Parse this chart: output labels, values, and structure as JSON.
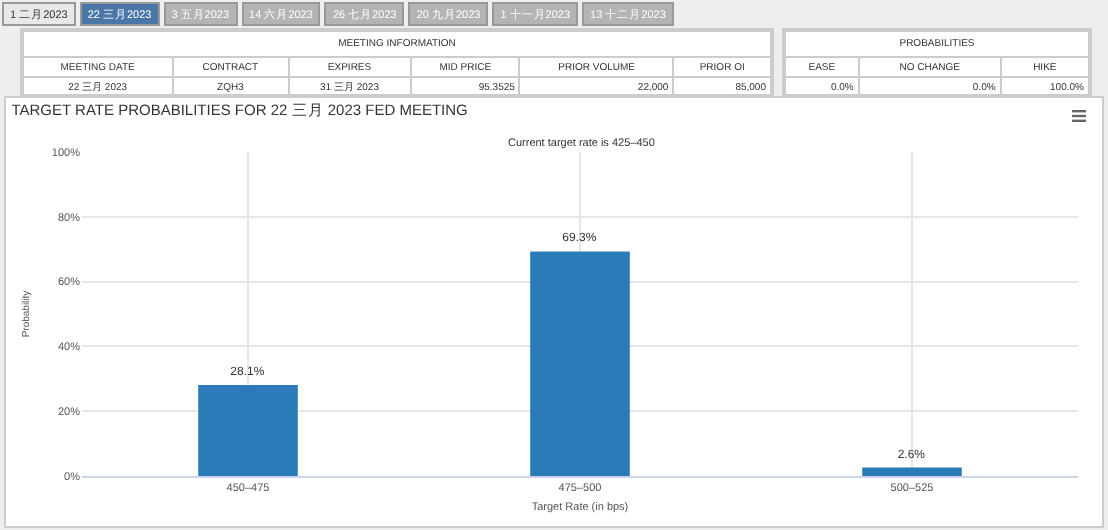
{
  "chart_data": [
    {
      "type": "other",
      "categories": [
        "1 二月2023",
        "22 三月2023",
        "3 五月2023",
        "14 六月2023",
        "26 七月2023",
        "20 九月2023",
        "1 十一月2023",
        "13 十二月2023"
      ],
      "colors": [
        "#e8e8e8",
        "#4a76a8",
        "#b4b4b4",
        "#b4b4b4",
        "#b4b4b4",
        "#b4b4b4",
        "#b4b4b4",
        "#b4b4b4"
      ]
    },
    {
      "type": "other",
      "title": "MEETING INFORMATION",
      "categories": [
        "MEETING DATE",
        "CONTRACT",
        "EXPIRES",
        "MID PRICE",
        "PRIOR VOLUME",
        "PRIOR OI"
      ],
      "annotations": [
        "22 三月 2023",
        "ZQH3",
        "31 三月 2023",
        "95.3525",
        "22,000",
        "85,000"
      ]
    },
    {
      "type": "other",
      "title": "PROBABILITIES",
      "categories": [
        "EASE",
        "NO CHANGE",
        "HIKE"
      ],
      "annotations": [
        "0.0%",
        "0.0%",
        "100.0%"
      ]
    },
    {
      "type": "bar",
      "title": "TARGET RATE PROBABILITIES FOR 22 三月 2023 FED MEETING",
      "subtitle": "Current target rate is 425–450",
      "xlabel": "Target Rate (in bps)",
      "ylabel": "Probability",
      "categories": [
        "450–475",
        "475–500",
        "500–525"
      ],
      "values": [
        28.1,
        69.3,
        2.6
      ],
      "value_labels": [
        "28.1%",
        "69.3%",
        "2.6%"
      ],
      "color": "#2b7bb9",
      "ylim": [
        0,
        100
      ],
      "yticks": [
        {
          "value": 0,
          "label": "0%"
        },
        {
          "value": 20,
          "label": "20%"
        },
        {
          "value": 40,
          "label": "40%"
        },
        {
          "value": 60,
          "label": "60%"
        },
        {
          "value": 80,
          "label": "80%"
        },
        {
          "value": 100,
          "label": "100%"
        }
      ],
      "grid": true,
      "legend": false
    }
  ]
}
